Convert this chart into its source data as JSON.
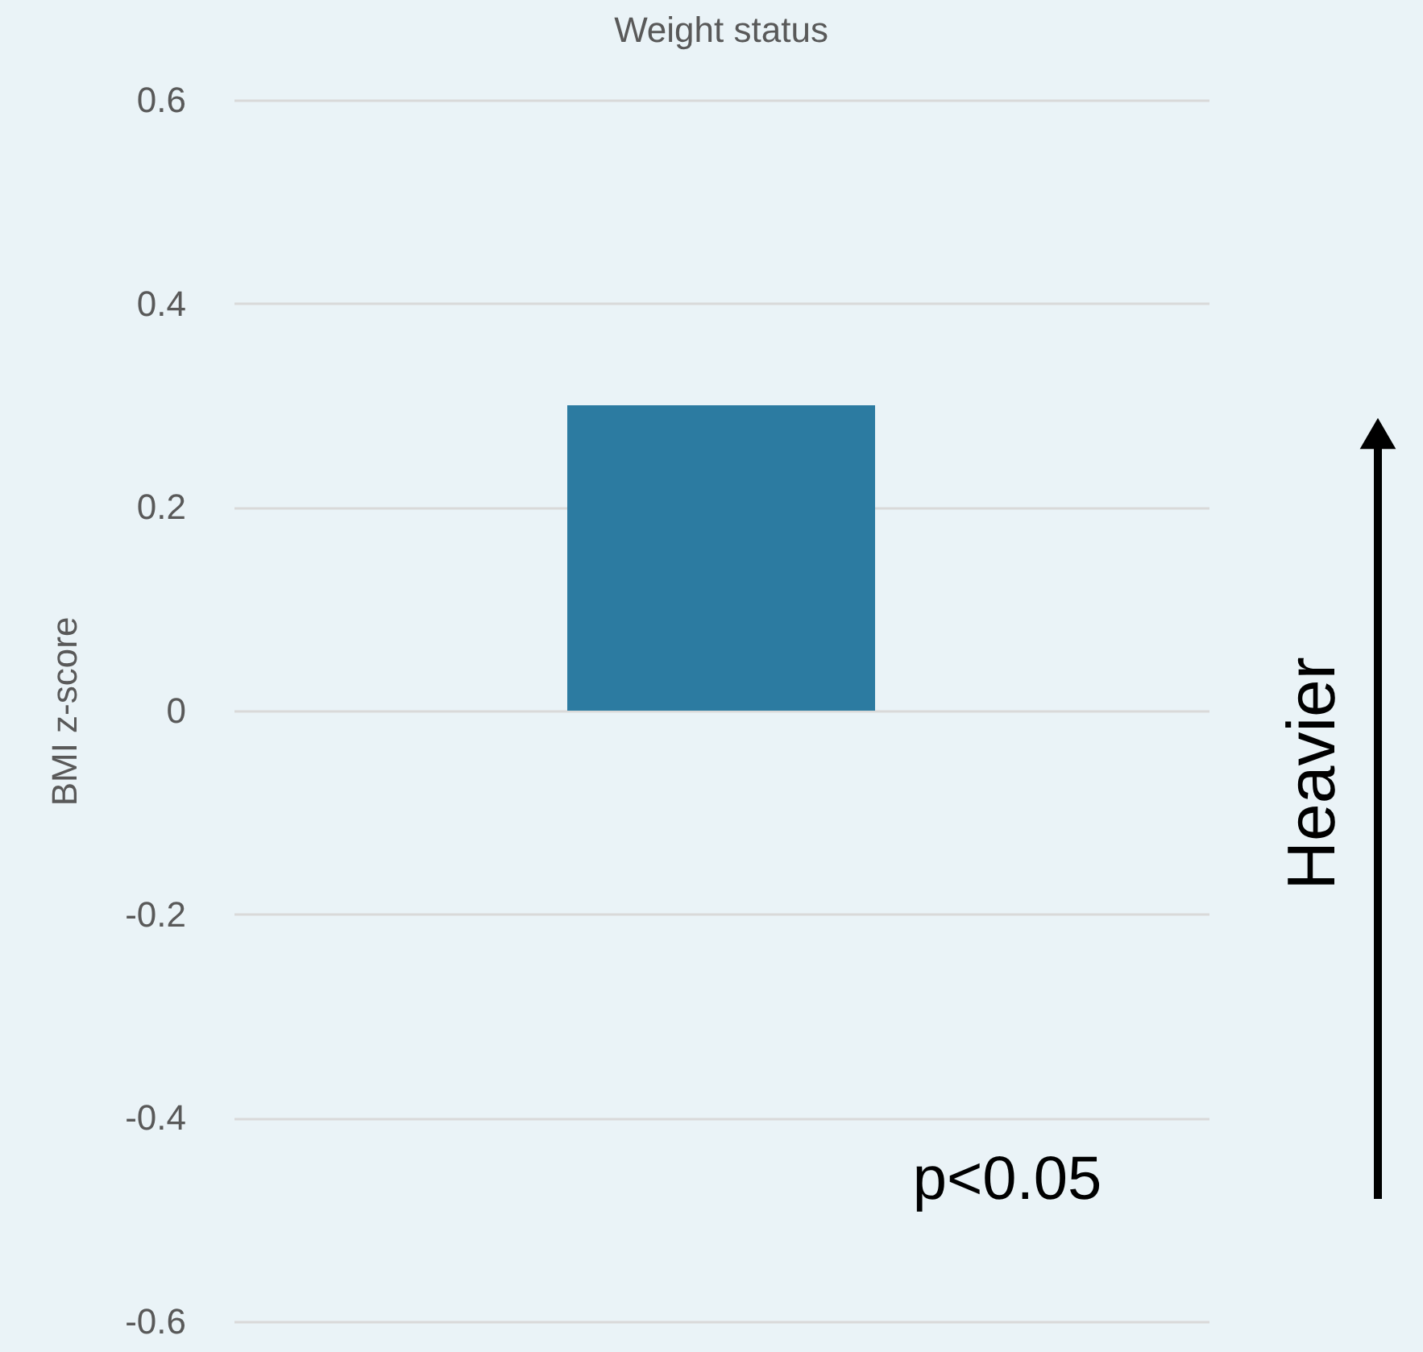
{
  "chart_data": {
    "type": "bar",
    "title": "Weight status",
    "ylabel": "BMI z-score",
    "categories": [
      null
    ],
    "values": [
      0.3
    ],
    "color": "#2c7ba1",
    "ylim": [
      -0.6,
      0.6
    ],
    "yticks": [
      -0.6,
      -0.4,
      -0.2,
      0,
      0.2,
      0.4,
      0.6
    ],
    "grid": "y",
    "annotations": [
      "p<0.05",
      "Heavier"
    ]
  }
}
